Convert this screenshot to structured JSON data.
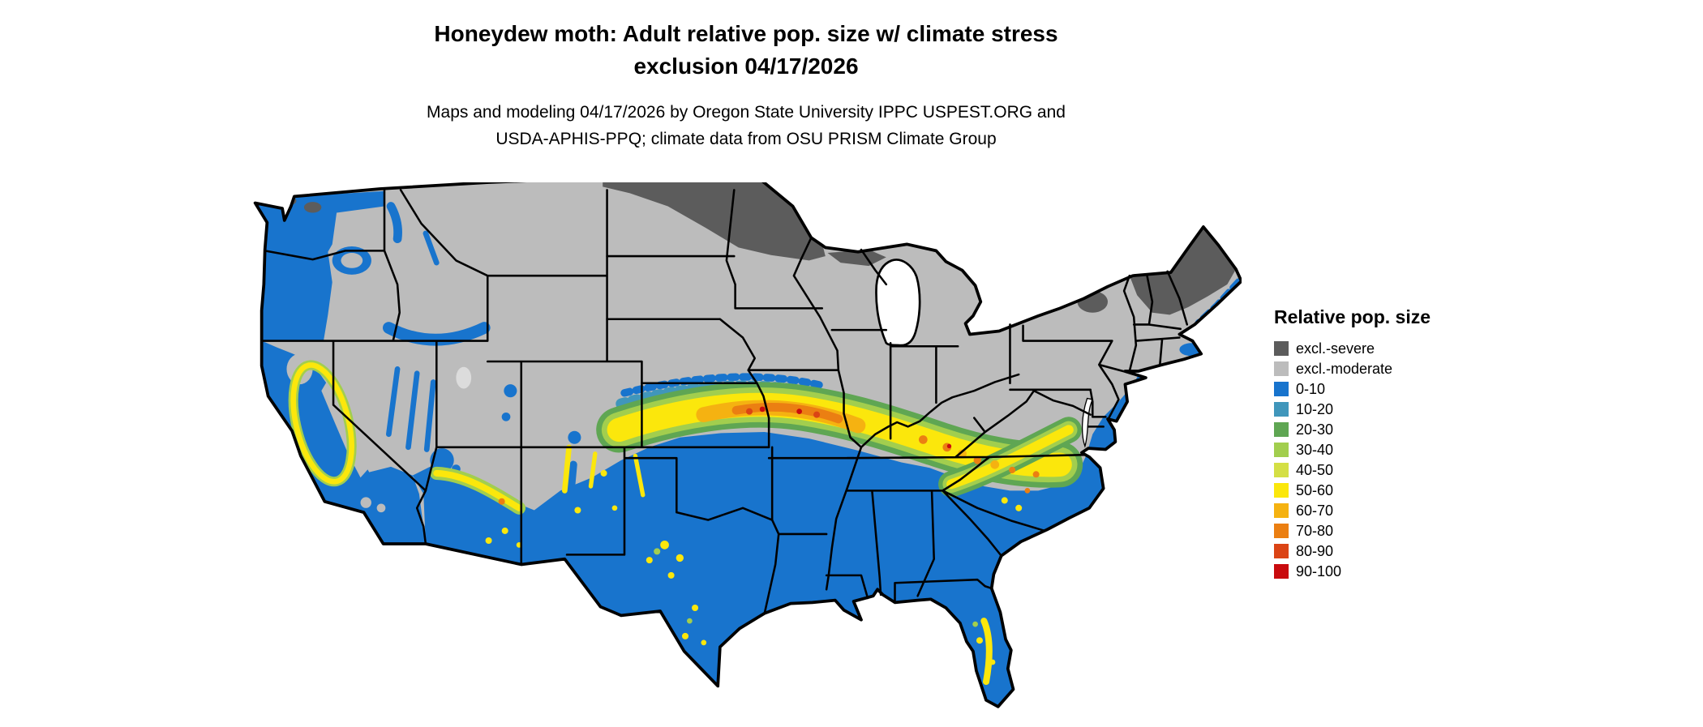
{
  "title": {
    "line1": "Honeydew moth: Adult relative pop. size w/ climate stress",
    "line2": "exclusion 04/17/2026"
  },
  "subtitle": {
    "line1": "Maps and modeling 04/17/2026 by Oregon State University IPPC USPEST.ORG and",
    "line2": "USDA-APHIS-PPQ; climate data from OSU PRISM Climate Group"
  },
  "legend": {
    "title": "Relative pop. size",
    "items": [
      {
        "label": "excl.-severe",
        "color": "#5c5c5c"
      },
      {
        "label": "excl.-moderate",
        "color": "#bcbcbc"
      },
      {
        "label": "0-10",
        "color": "#1874cd"
      },
      {
        "label": "10-20",
        "color": "#4096bb"
      },
      {
        "label": "20-30",
        "color": "#5fa653"
      },
      {
        "label": "30-40",
        "color": "#a2ce4e"
      },
      {
        "label": "40-50",
        "color": "#d4df45"
      },
      {
        "label": "50-60",
        "color": "#fbe70c"
      },
      {
        "label": "60-70",
        "color": "#f5b211"
      },
      {
        "label": "70-80",
        "color": "#eb7f12"
      },
      {
        "label": "80-90",
        "color": "#db4415"
      },
      {
        "label": "90-100",
        "color": "#c90b0e"
      }
    ]
  }
}
